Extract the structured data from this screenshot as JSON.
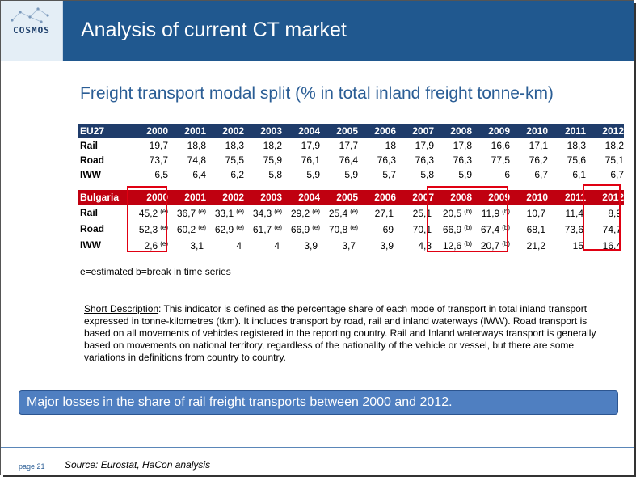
{
  "logo": {
    "text": "COSMOS"
  },
  "header": {
    "title": "Analysis of current CT market"
  },
  "subtitle": "Freight transport modal split (% in total inland freight tonne-km)",
  "eu_table": {
    "label": "EU27",
    "years": [
      "2000",
      "2001",
      "2002",
      "2003",
      "2004",
      "2005",
      "2006",
      "2007",
      "2008",
      "2009",
      "2010",
      "2011",
      "2012"
    ],
    "rows": [
      {
        "label": "Rail",
        "values": [
          "19,7",
          "18,8",
          "18,3",
          "18,2",
          "17,9",
          "17,7",
          "18",
          "17,9",
          "17,8",
          "16,6",
          "17,1",
          "18,3",
          "18,2"
        ]
      },
      {
        "label": "Road",
        "values": [
          "73,7",
          "74,8",
          "75,5",
          "75,9",
          "76,1",
          "76,4",
          "76,3",
          "76,3",
          "76,3",
          "77,5",
          "76,2",
          "75,6",
          "75,1"
        ]
      },
      {
        "label": "IWW",
        "values": [
          "6,5",
          "6,4",
          "6,2",
          "5,8",
          "5,9",
          "5,9",
          "5,7",
          "5,8",
          "5,9",
          "6",
          "6,7",
          "6,1",
          "6,7"
        ]
      }
    ]
  },
  "bg_table": {
    "label": "Bulgaria",
    "years": [
      "2000",
      "2001",
      "2002",
      "2003",
      "2004",
      "2005",
      "2006",
      "2007",
      "2008",
      "2009",
      "2010",
      "2011",
      "2012"
    ],
    "rows": [
      {
        "label": "Rail",
        "values": [
          "45,2",
          "36,7",
          "33,1",
          "34,3",
          "29,2",
          "25,4",
          "27,1",
          "25,1",
          "20,5",
          "11,9",
          "10,7",
          "11,4",
          "8,9"
        ],
        "notes": [
          "(e)",
          "(e)",
          "(e)",
          "(e)",
          "(e)",
          "(e)",
          "",
          "",
          "(b)",
          "(b)",
          "",
          "",
          ""
        ]
      },
      {
        "label": "Road",
        "values": [
          "52,3",
          "60,2",
          "62,9",
          "61,7",
          "66,9",
          "70,8",
          "69",
          "70,1",
          "66,9",
          "67,4",
          "68,1",
          "73,6",
          "74,7"
        ],
        "notes": [
          "(e)",
          "(e)",
          "(e)",
          "(e)",
          "(e)",
          "(e)",
          "",
          "",
          "(b)",
          "(b)",
          "",
          "",
          ""
        ]
      },
      {
        "label": "IWW",
        "values": [
          "2,6",
          "3,1",
          "4",
          "4",
          "3,9",
          "3,7",
          "3,9",
          "4,8",
          "12,6",
          "20,7",
          "21,2",
          "15",
          "16,4"
        ],
        "notes": [
          "(e)",
          "",
          "",
          "",
          "",
          "",
          "",
          "",
          "(b)",
          "(b)",
          "",
          "",
          ""
        ]
      }
    ]
  },
  "legend_note": "e=estimated b=break in time series",
  "description": {
    "label": "Short Description",
    "text": ": This indicator is defined as the percentage share of each mode of transport in total inland transport expressed in tonne-kilometres (tkm). It includes transport by road, rail and inland waterways (IWW). Road transport is based on all movements of vehicles registered in the reporting country. Rail and Inland waterways transport is generally based on movements on national territory, regardless of the nationality of the vehicle or vessel, but there are some variations in definitions from country to country."
  },
  "banner": "Major losses in the share of rail freight transports between 2000 and 2012.",
  "footer": {
    "page": "page 21",
    "source": "Source: Eurostat, HaCon analysis"
  },
  "colors": {
    "header": "#20588f",
    "eu_header": "#1f3c6a",
    "bg_header": "#c00010",
    "highlight": "#e00012",
    "banner": "#4f7fc1"
  }
}
